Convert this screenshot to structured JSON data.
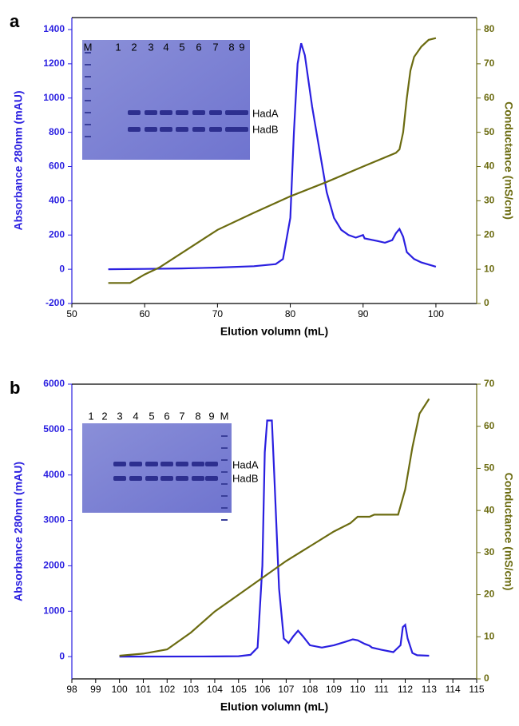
{
  "chart_data": [
    {
      "type": "line",
      "label": "a",
      "xlabel": "Elution volumn (mL)",
      "ylabel": "Absorbance 280nm (mAU)",
      "y2label": "Conductance (mS/cm)",
      "xlim": [
        50,
        105.6
      ],
      "xticks": [
        50,
        60,
        70,
        80,
        90,
        100
      ],
      "ylim": [
        -200,
        1470
      ],
      "yticks": [
        -200,
        0,
        200,
        400,
        600,
        800,
        1000,
        1200,
        1400
      ],
      "y2lim": [
        0,
        83.5
      ],
      "y2ticks": [
        0,
        10,
        20,
        30,
        40,
        50,
        60,
        70,
        80
      ],
      "inset_lanes": [
        "M",
        "1",
        "2",
        "3",
        "4",
        "5",
        "6",
        "7",
        "8",
        "9"
      ],
      "inset_bands": [
        "HadA",
        "HadB"
      ],
      "series": [
        {
          "color": "#2a1fe0",
          "x": [
            55,
            60,
            65,
            70,
            75,
            78,
            79,
            80,
            80.5,
            81,
            81.5,
            82,
            83,
            84,
            85,
            86,
            87,
            88,
            89,
            90,
            90.2,
            92,
            93,
            94,
            94.5,
            95,
            95.5,
            96,
            97,
            98,
            100
          ],
          "values": [
            0,
            2,
            5,
            10,
            18,
            30,
            60,
            300,
            800,
            1200,
            1320,
            1250,
            950,
            700,
            450,
            300,
            230,
            200,
            185,
            200,
            180,
            165,
            155,
            170,
            210,
            235,
            190,
            100,
            60,
            40,
            15
          ]
        },
        {
          "color": "#6b6b10",
          "axis": "y2",
          "x": [
            55,
            58,
            60,
            62,
            66,
            70,
            75,
            80,
            85,
            90,
            94.5,
            95,
            95.5,
            96,
            96.5,
            97,
            98,
            99,
            100
          ],
          "values": [
            6,
            6,
            8.5,
            10.5,
            16,
            21.5,
            26.5,
            31.3,
            35.5,
            40,
            44,
            45,
            50,
            60,
            68,
            72,
            75,
            77,
            77.5
          ]
        }
      ]
    },
    {
      "type": "line",
      "label": "b",
      "xlabel": "Elution volumn (mL)",
      "ylabel": "Absorbance 280nm (mAU)",
      "y2label": "Conductance (mS/cm)",
      "xlim": [
        98,
        115
      ],
      "xticks": [
        98,
        99,
        100,
        101,
        102,
        103,
        104,
        105,
        106,
        107,
        108,
        109,
        110,
        111,
        112,
        113,
        114,
        115
      ],
      "ylim": [
        -490,
        6000
      ],
      "yticks": [
        0,
        1000,
        2000,
        3000,
        4000,
        5000,
        6000
      ],
      "y2lim": [
        0,
        70
      ],
      "y2ticks": [
        0,
        10,
        20,
        30,
        40,
        50,
        60,
        70
      ],
      "inset_lanes": [
        "1",
        "2",
        "3",
        "4",
        "5",
        "6",
        "7",
        "8",
        "9",
        "M"
      ],
      "inset_bands": [
        "HadA",
        "HadB"
      ],
      "series": [
        {
          "color": "#2a1fe0",
          "x": [
            100,
            104,
            105,
            105.5,
            105.8,
            106,
            106.1,
            106.2,
            106.4,
            106.5,
            106.7,
            106.9,
            107.1,
            107.3,
            107.5,
            107.7,
            108,
            108.5,
            109,
            109.5,
            109.8,
            110,
            110.3,
            110.5,
            110.6,
            111,
            111.5,
            111.8,
            111.9,
            112,
            112.1,
            112.3,
            112.5,
            113
          ],
          "values": [
            0,
            5,
            10,
            40,
            200,
            2000,
            4500,
            5200,
            5200,
            4000,
            1500,
            400,
            300,
            450,
            570,
            450,
            250,
            200,
            250,
            330,
            380,
            360,
            280,
            240,
            200,
            150,
            100,
            250,
            650,
            700,
            400,
            80,
            30,
            20
          ]
        },
        {
          "color": "#6b6b10",
          "axis": "y2",
          "x": [
            100,
            101,
            102,
            103,
            104,
            105,
            106,
            107,
            108,
            109,
            109.7,
            110,
            110.5,
            110.7,
            111.7,
            112,
            112.3,
            112.6,
            113
          ],
          "values": [
            5.5,
            6,
            7,
            11,
            16,
            20,
            24,
            28,
            31.5,
            35,
            37,
            38.5,
            38.5,
            39,
            39,
            45,
            55,
            63,
            66.5
          ]
        }
      ]
    }
  ]
}
